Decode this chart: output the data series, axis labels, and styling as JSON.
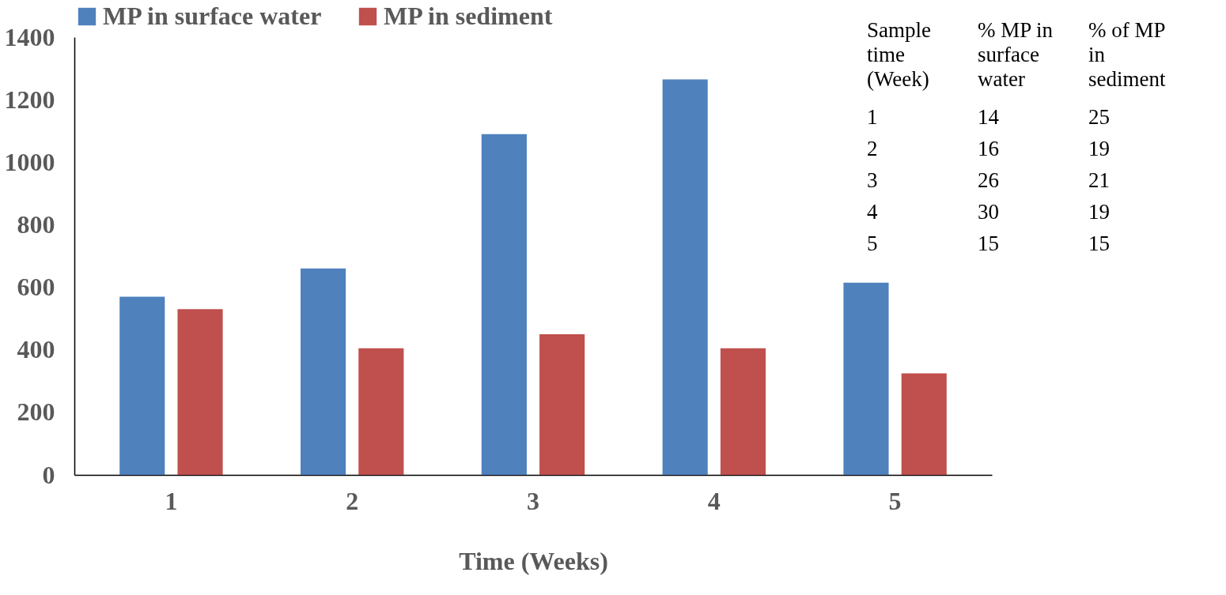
{
  "chart_data": {
    "type": "bar",
    "xlabel": "Time (Weeks)",
    "categories": [
      "1",
      "2",
      "3",
      "4",
      "5"
    ],
    "series": [
      {
        "name": "MP in surface water",
        "color": "#4f81bd",
        "values": [
          570,
          660,
          1090,
          1265,
          615
        ]
      },
      {
        "name": "MP in sediment",
        "color": "#c0504d",
        "values": [
          530,
          405,
          450,
          405,
          325
        ]
      }
    ],
    "ylim": [
      0,
      1400
    ],
    "yticks": [
      0,
      200,
      400,
      600,
      800,
      1000,
      1200,
      1400
    ],
    "grid": false,
    "legend": "top",
    "annotations": [
      "Sample time (Week)",
      "% MP in surface water",
      "% of MP in sediment",
      "1",
      "14",
      "25",
      "2",
      "16",
      "19",
      "3",
      "26",
      "21",
      "4",
      "30",
      "19",
      "5",
      "15",
      "15"
    ]
  }
}
